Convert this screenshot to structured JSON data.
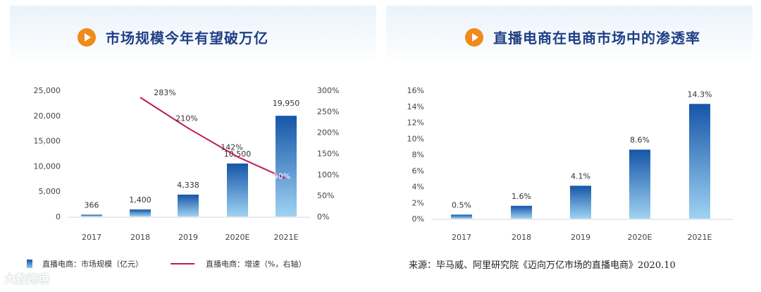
{
  "header_left": {
    "title": "市场规模今年有望破万亿"
  },
  "header_right": {
    "title": "直播电商在电商市场中的渗透率"
  },
  "legend": {
    "bar_label": "直播电商：市场规模（亿元）",
    "line_label": "直播电商：增速（%，右轴）"
  },
  "source": "来源：毕马威、阿里研究院《迈向万亿市场的直播电商》2020.10",
  "watermark": "大数跨境",
  "colors": {
    "bar_top": "#1655a8",
    "bar_bottom": "#9fd3f2",
    "line": "#c2185b",
    "title": "#1f3f86",
    "icon": "#f08a1c"
  },
  "chart_data": [
    {
      "type": "bar",
      "categories": [
        "2017",
        "2018",
        "2019",
        "2020E",
        "2021E"
      ],
      "series": [
        {
          "name": "直播电商：市场规模（亿元）",
          "values": [
            366,
            1400,
            4338,
            10500,
            19950
          ],
          "labels": [
            "366",
            "1,400",
            "4,338",
            "10,500",
            "19,950"
          ]
        },
        {
          "name": "直播电商：增速（%，右轴）",
          "type": "line",
          "axis": "right",
          "values": [
            null,
            283,
            210,
            142,
            90
          ],
          "labels": [
            "",
            "283%",
            "210%",
            "142%",
            "90%"
          ]
        }
      ],
      "ylim": [
        0,
        25000
      ],
      "yticks": [
        "0",
        "5,000",
        "10,000",
        "15,000",
        "20,000",
        "25,000"
      ],
      "y2lim": [
        0,
        300
      ],
      "y2ticks": [
        "0%",
        "50%",
        "100%",
        "150%",
        "200%",
        "250%",
        "300%"
      ],
      "grid": false,
      "legend": "bottom"
    },
    {
      "type": "bar",
      "categories": [
        "2017",
        "2018",
        "2019",
        "2020E",
        "2021E"
      ],
      "values": [
        0.5,
        1.6,
        4.1,
        8.6,
        14.3
      ],
      "labels": [
        "0.5%",
        "1.6%",
        "4.1%",
        "8.6%",
        "14.3%"
      ],
      "ylim": [
        0,
        16
      ],
      "yticks": [
        "0%",
        "2%",
        "4%",
        "6%",
        "8%",
        "10%",
        "12%",
        "14%",
        "16%"
      ],
      "grid": false
    }
  ]
}
